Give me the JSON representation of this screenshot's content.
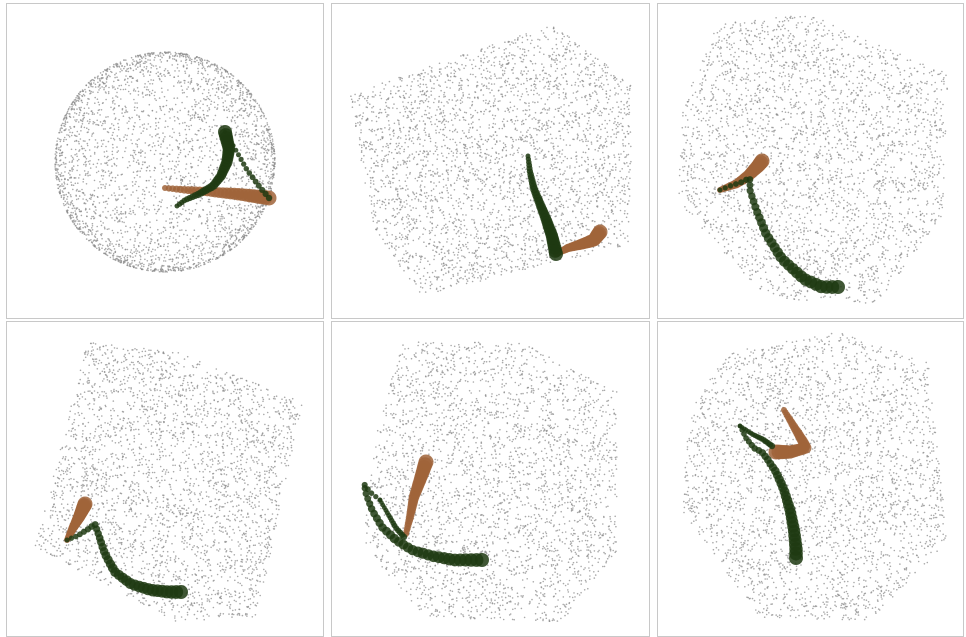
{
  "figure": {
    "panels": [
      {
        "id": "panel-1",
        "cloud": "sphere"
      },
      {
        "id": "panel-2",
        "cloud": "box"
      },
      {
        "id": "panel-3",
        "cloud": "box"
      },
      {
        "id": "panel-4",
        "cloud": "box"
      },
      {
        "id": "panel-5",
        "cloud": "box"
      },
      {
        "id": "panel-6",
        "cloud": "box"
      }
    ],
    "colors": {
      "cloud_point": "#8c8c8c",
      "dark_path": "#1f3a12",
      "light_path": "#a0643a",
      "panel_border": "#c8c8c8"
    }
  }
}
